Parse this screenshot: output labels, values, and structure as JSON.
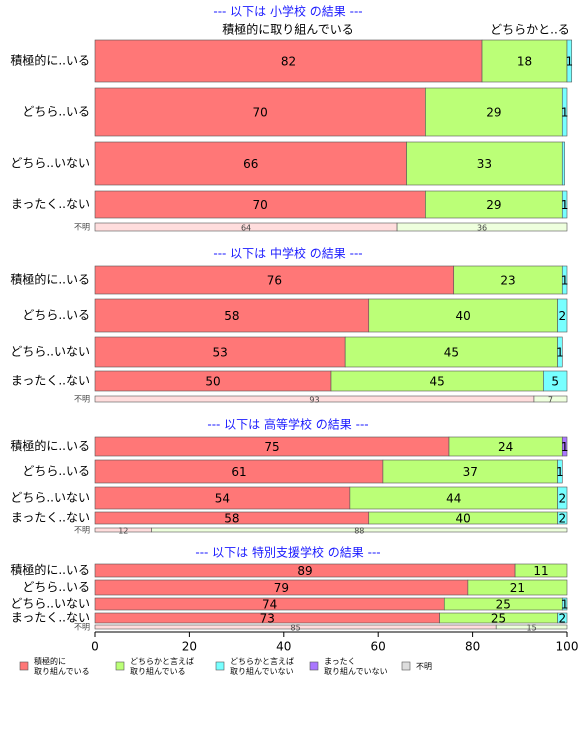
{
  "chart_data": [
    {
      "type": "bar",
      "title": "--- 以下は 小学校 の結果 ---",
      "column_headers": [
        "積極的に取り組んでいる",
        "どちらかと..る"
      ],
      "categories": [
        "積極的に..いる",
        "どちら..いる",
        "どちら..いない",
        "まったく..ない",
        "不明"
      ],
      "series": [
        {
          "name": "積極的に\n取り組んでいる",
          "color": "#ff7777",
          "values": [
            82,
            70,
            66,
            70,
            64
          ]
        },
        {
          "name": "どちらかと言えば\n取り組んでいる",
          "color": "#bbff77",
          "values": [
            18,
            29,
            33,
            29,
            36
          ]
        },
        {
          "name": "どちらかと言えば\n取り組んでいない",
          "color": "#77ffff",
          "values": [
            1,
            1,
            0.5,
            1,
            0
          ]
        },
        {
          "name": "まったく\n取り組んでいない",
          "color": "#aa77ff",
          "values": [
            0,
            0,
            0,
            0,
            0
          ]
        },
        {
          "name": "不明",
          "color": "#dddddd",
          "values": [
            0,
            0,
            0,
            0,
            0
          ]
        }
      ]
    },
    {
      "type": "bar",
      "title": "--- 以下は 中学校 の結果 ---",
      "categories": [
        "積極的に..いる",
        "どちら..いる",
        "どちら..いない",
        "まったく..ない",
        "不明"
      ],
      "series": [
        {
          "name": "積極的に\n取り組んでいる",
          "color": "#ff7777",
          "values": [
            76,
            58,
            53,
            50,
            93
          ]
        },
        {
          "name": "どちらかと言えば\n取り組んでいる",
          "color": "#bbff77",
          "values": [
            23,
            40,
            45,
            45,
            7
          ]
        },
        {
          "name": "どちらかと言えば\n取り組んでいない",
          "color": "#77ffff",
          "values": [
            1,
            2,
            1,
            5,
            0
          ]
        },
        {
          "name": "まったく\n取り組んでいない",
          "color": "#aa77ff",
          "values": [
            0,
            0,
            0,
            0,
            0
          ]
        },
        {
          "name": "不明",
          "color": "#dddddd",
          "values": [
            0,
            0,
            0,
            0,
            0
          ]
        }
      ]
    },
    {
      "type": "bar",
      "title": "--- 以下は 高等学校 の結果 ---",
      "categories": [
        "積極的に..いる",
        "どちら..いる",
        "どちら..いない",
        "まったく..ない",
        "不明"
      ],
      "series": [
        {
          "name": "積極的に\n取り組んでいる",
          "color": "#ff7777",
          "values": [
            75,
            61,
            54,
            58,
            12
          ]
        },
        {
          "name": "どちらかと言えば\n取り組んでいる",
          "color": "#bbff77",
          "values": [
            24,
            37,
            44,
            40,
            88
          ]
        },
        {
          "name": "どちらかと言えば\n取り組んでいない",
          "color": "#77ffff",
          "values": [
            0,
            1,
            2,
            2,
            0
          ]
        },
        {
          "name": "まったく\n取り組んでいない",
          "color": "#aa77ff",
          "values": [
            1,
            0,
            0,
            0,
            0
          ]
        },
        {
          "name": "不明",
          "color": "#dddddd",
          "values": [
            0,
            0,
            0,
            0,
            0
          ]
        }
      ]
    },
    {
      "type": "bar",
      "title": "--- 以下は 特別支援学校 の結果 ---",
      "categories": [
        "積極的に..いる",
        "どちら..いる",
        "どちら..いない",
        "まったく..ない",
        "不明"
      ],
      "series": [
        {
          "name": "積極的に\n取り組んでいる",
          "color": "#ff7777",
          "values": [
            89,
            79,
            74,
            73,
            85
          ]
        },
        {
          "name": "どちらかと言えば\n取り組んでいる",
          "color": "#bbff77",
          "values": [
            11,
            21,
            25,
            25,
            15
          ]
        },
        {
          "name": "どちらかと言えば\n取り組んでいない",
          "color": "#77ffff",
          "values": [
            0,
            0,
            1,
            2,
            0
          ]
        },
        {
          "name": "まったく\n取り組んでいない",
          "color": "#aa77ff",
          "values": [
            0,
            0,
            0,
            0,
            0
          ]
        },
        {
          "name": "不明",
          "color": "#dddddd",
          "values": [
            0,
            0,
            0,
            0,
            0
          ]
        }
      ],
      "xlim": [
        0,
        100
      ],
      "xticks": [
        0,
        20,
        40,
        60,
        80,
        100
      ]
    }
  ]
}
